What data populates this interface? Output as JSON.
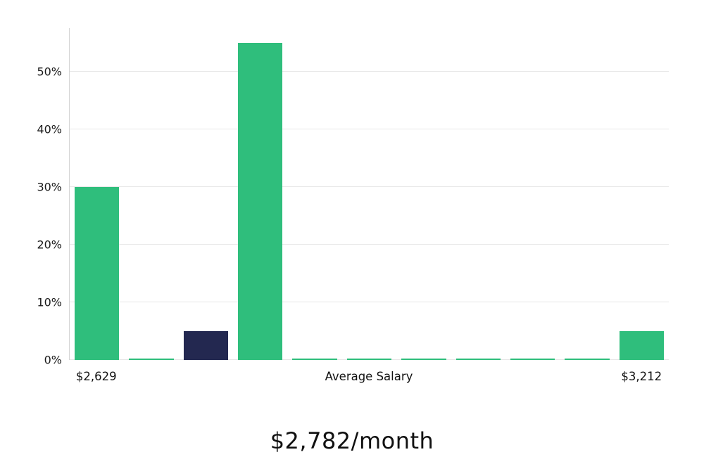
{
  "chart_data": {
    "type": "bar",
    "title": "",
    "xlabel": "Average Salary",
    "ylabel": "",
    "ylim": [
      0,
      57.5
    ],
    "grid": "horizontal",
    "legend": "none",
    "values": [
      30,
      0.2,
      5,
      55,
      0.2,
      0.2,
      0.2,
      0.2,
      0.2,
      0.2,
      5
    ],
    "bar_colors": [
      "#2FBE7C",
      "#2FBE7C",
      "#232850",
      "#2FBE7C",
      "#2FBE7C",
      "#2FBE7C",
      "#2FBE7C",
      "#2FBE7C",
      "#2FBE7C",
      "#2FBE7C",
      "#2FBE7C"
    ],
    "highlight_index": 2,
    "yticks": [
      {
        "value": 0,
        "label": "0%"
      },
      {
        "value": 10,
        "label": "10%"
      },
      {
        "value": 20,
        "label": "20%"
      },
      {
        "value": 30,
        "label": "30%"
      },
      {
        "value": 40,
        "label": "40%"
      },
      {
        "value": 50,
        "label": "50%"
      }
    ],
    "x_axis_labels": [
      {
        "text": "$2,629",
        "position": "left"
      },
      {
        "text": "Average Salary",
        "position": "center"
      },
      {
        "text": "$3,212",
        "position": "right"
      }
    ],
    "colors": {
      "bar_green": "#2FBE7C",
      "bar_dark": "#232850",
      "gridline": "#e7e7e7",
      "axis_line": "#d4d4d4"
    }
  },
  "footer": {
    "average_salary": "$2,782/month"
  }
}
